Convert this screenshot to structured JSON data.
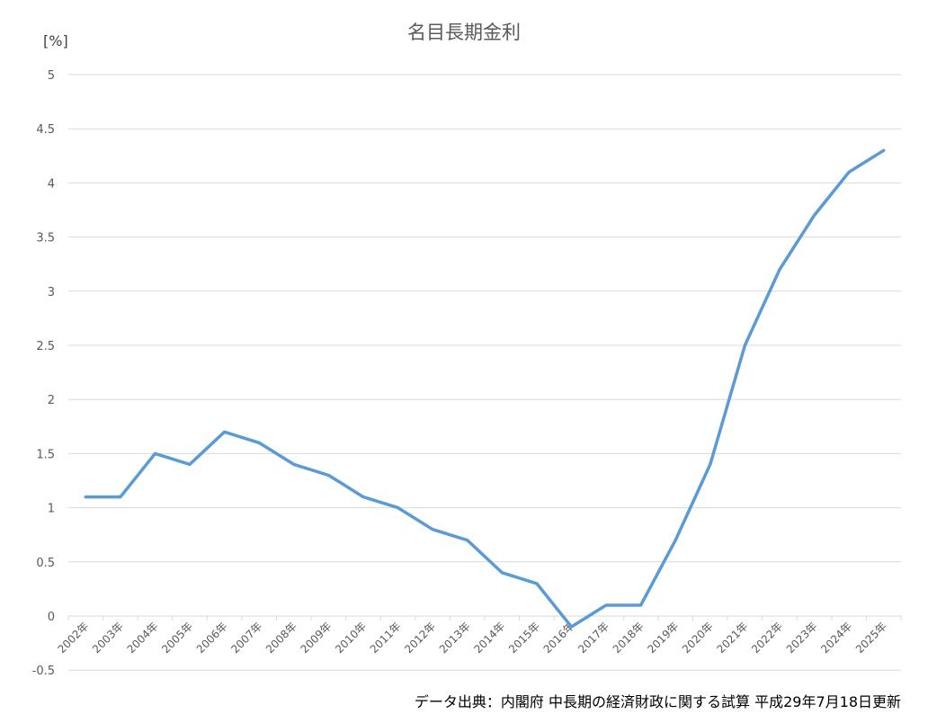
{
  "chart_data": {
    "type": "line",
    "title": "名目長期金利",
    "xlabel": "",
    "ylabel": "[%]",
    "ylim": [
      -0.5,
      5
    ],
    "yticks": [
      5,
      4.5,
      4,
      3.5,
      3,
      2.5,
      2,
      1.5,
      1,
      0.5,
      0,
      -0.5
    ],
    "grid": true,
    "legend": "none",
    "categories": [
      "2002年",
      "2003年",
      "2004年",
      "2005年",
      "2006年",
      "2007年",
      "2008年",
      "2009年",
      "2010年",
      "2011年",
      "2012年",
      "2013年",
      "2014年",
      "2015年",
      "2016年",
      "2017年",
      "2018年",
      "2019年",
      "2020年",
      "2021年",
      "2022年",
      "2023年",
      "2024年",
      "2025年"
    ],
    "series": [
      {
        "name": "名目長期金利",
        "color": "#5B9BD5",
        "values": [
          1.1,
          1.1,
          1.5,
          1.4,
          1.7,
          1.6,
          1.4,
          1.3,
          1.1,
          1.0,
          0.8,
          0.7,
          0.4,
          0.3,
          -0.1,
          0.1,
          0.1,
          0.7,
          1.4,
          2.5,
          3.2,
          3.7,
          4.1,
          4.3
        ]
      }
    ],
    "annotations": [
      "データ出典：内閣府 中長期の経済財政に関する試算 平成29年7月18日更新"
    ]
  },
  "labels": {
    "title": "名目長期金利",
    "y_unit": "[%]",
    "source": "データ出典：内閣府 中長期の経済財政に関する試算 平成29年7月18日更新"
  }
}
